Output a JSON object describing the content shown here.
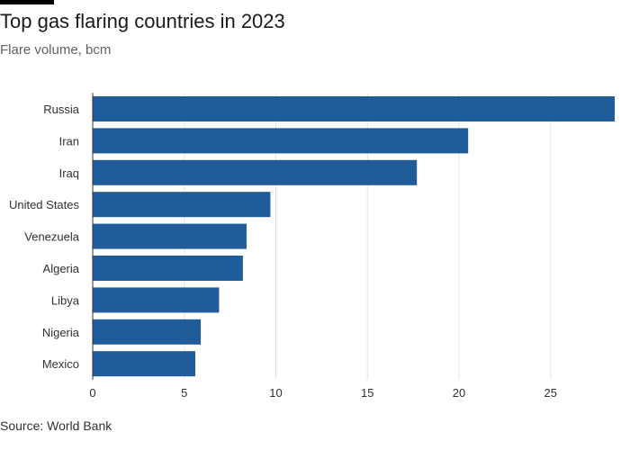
{
  "header": {
    "title": "Top gas flaring countries in 2023",
    "subtitle": "Flare volume, bcm"
  },
  "footer": {
    "source": "Source: World Bank"
  },
  "chart_data": {
    "type": "bar",
    "orientation": "horizontal",
    "title": "Top gas flaring countries in 2023",
    "subtitle": "Flare volume, bcm",
    "categories": [
      "Russia",
      "Iran",
      "Iraq",
      "United States",
      "Venezuela",
      "Algeria",
      "Libya",
      "Nigeria",
      "Mexico"
    ],
    "values": [
      28.5,
      20.5,
      17.7,
      9.7,
      8.4,
      8.2,
      6.9,
      5.9,
      5.6
    ],
    "xlim": [
      0,
      28.5
    ],
    "xticks": [
      0,
      5,
      10,
      15,
      20,
      25
    ],
    "grid": true,
    "bar_color": "#1f5c99",
    "source": "Source: World Bank"
  }
}
